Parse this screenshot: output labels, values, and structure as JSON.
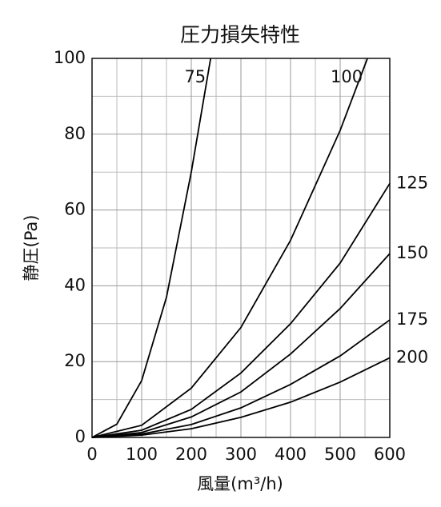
{
  "chart_data": {
    "type": "line",
    "title": "圧力損失特性",
    "x_label": "風量(m³/h)",
    "y_label": "静圧(Pa)",
    "xlim": [
      0,
      600
    ],
    "ylim": [
      0,
      100
    ],
    "xticks": [
      0,
      100,
      200,
      300,
      400,
      500,
      600
    ],
    "yticks": [
      0,
      20,
      40,
      60,
      80,
      100
    ],
    "grid": true,
    "series": [
      {
        "name": "75",
        "color": "#000000",
        "x": [
          0,
          50,
          100,
          150,
          200,
          239
        ],
        "values": [
          0,
          3.5,
          15,
          37,
          70,
          100
        ]
      },
      {
        "name": "100",
        "color": "#000000",
        "x": [
          0,
          100,
          200,
          300,
          400,
          500,
          555
        ],
        "values": [
          0,
          3.2,
          13,
          29,
          52,
          81,
          100
        ]
      },
      {
        "name": "125",
        "color": "#000000",
        "x": [
          0,
          100,
          200,
          300,
          400,
          500,
          600
        ],
        "values": [
          0,
          1.9,
          7.4,
          17,
          30,
          46,
          67
        ]
      },
      {
        "name": "150",
        "color": "#000000",
        "x": [
          0,
          100,
          200,
          300,
          400,
          500,
          600
        ],
        "values": [
          0,
          1.3,
          5.4,
          12,
          22,
          34,
          48.5
        ]
      },
      {
        "name": "175",
        "color": "#000000",
        "x": [
          0,
          100,
          200,
          300,
          400,
          500,
          600
        ],
        "values": [
          0,
          0.9,
          3.4,
          7.8,
          14,
          21.5,
          31
        ]
      },
      {
        "name": "200",
        "color": "#000000",
        "x": [
          0,
          100,
          200,
          300,
          400,
          500,
          600
        ],
        "values": [
          0,
          0.6,
          2.3,
          5.3,
          9.3,
          14.6,
          21
        ]
      }
    ]
  }
}
